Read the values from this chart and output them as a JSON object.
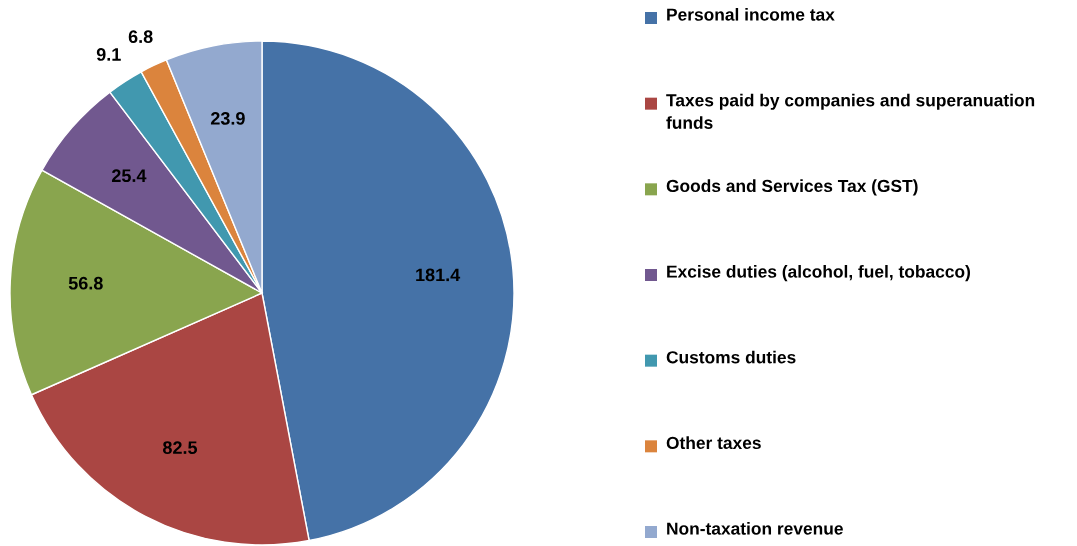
{
  "chart_data": {
    "type": "pie",
    "categories": [
      "Personal income tax",
      "Taxes paid by companies and superanuation funds",
      "Goods and Services Tax (GST)",
      "Excise duties (alcohol, fuel, tobacco)",
      "Customs duties",
      "Other taxes",
      "Non-taxation revenue"
    ],
    "values": [
      181.4,
      82.5,
      56.8,
      25.4,
      9.1,
      6.8,
      23.9
    ],
    "colors": [
      "#4572a7",
      "#aa4643",
      "#89a54e",
      "#71588f",
      "#4198af",
      "#db843d",
      "#93a9cf"
    ],
    "data_labels": true,
    "legend": "right"
  }
}
